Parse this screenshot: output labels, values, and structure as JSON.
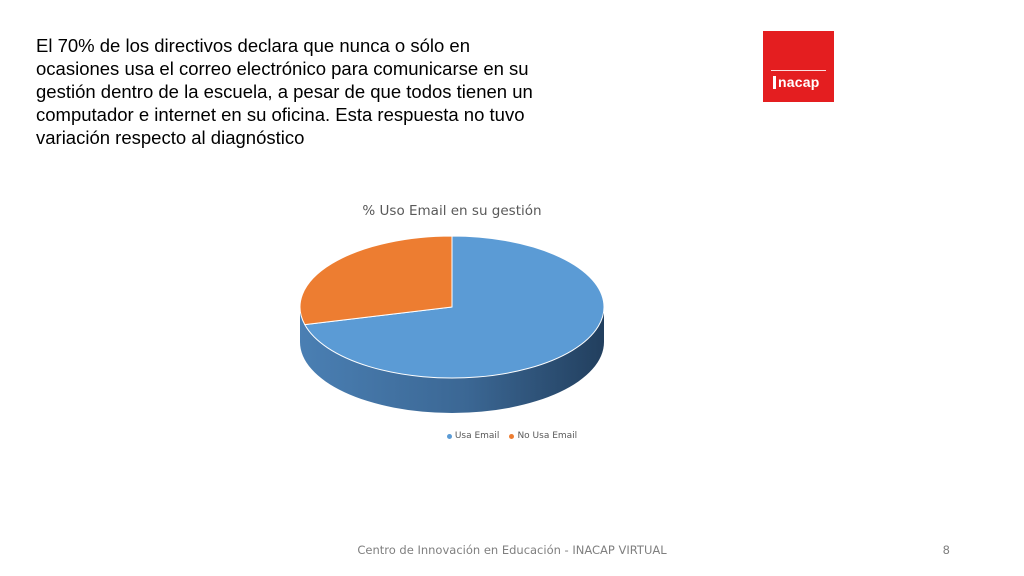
{
  "slide": {
    "intro_text": "El 70% de los directivos declara que nunca o sólo en ocasiones usa el correo electrónico para comunicarse en su gestión dentro de la escuela, a pesar de que todos tienen un computador e internet en su oficina. Esta respuesta no tuvo variación respecto al diagnóstico",
    "footer": "Centro de Innovación en Educación - INACAP VIRTUAL",
    "page_number": "8"
  },
  "logo": {
    "text": "inacap",
    "background": "#e41e20"
  },
  "chart_data": {
    "type": "pie",
    "style": "3d",
    "title": "% Uso Email en su gestión",
    "categories": [
      "Usa Email",
      "No Usa Email"
    ],
    "values": [
      71,
      29
    ],
    "colors": [
      "#5b9bd5",
      "#ed7d31"
    ],
    "legend_position": "bottom"
  }
}
